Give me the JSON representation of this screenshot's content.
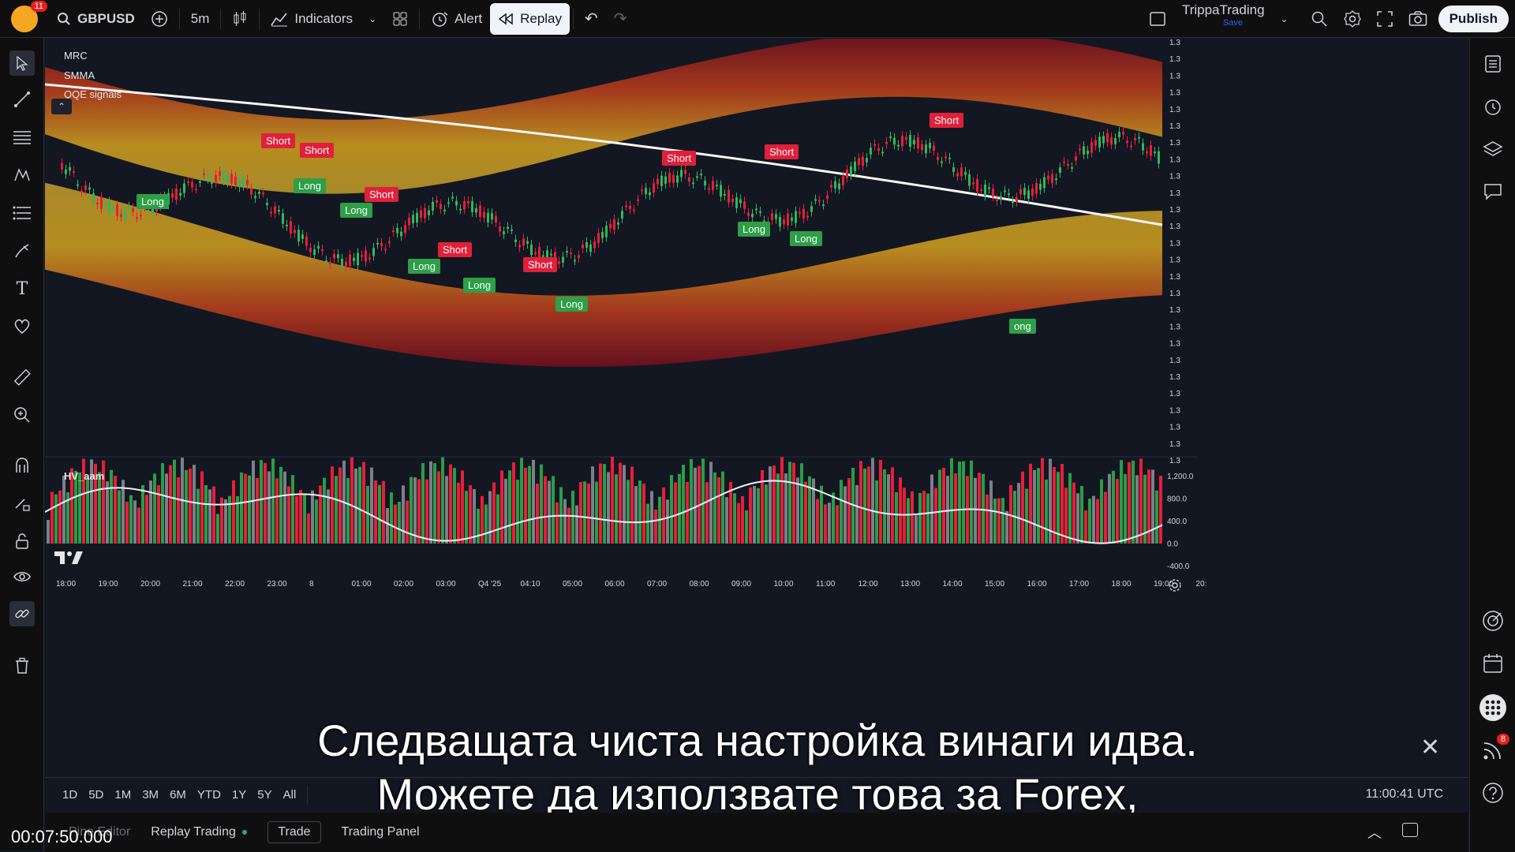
{
  "topbar": {
    "notifications": "11",
    "symbol": "GBPUSD",
    "interval": "5m",
    "indicators": "Indicators",
    "alert": "Alert",
    "replay": "Replay",
    "account_name": "TrippaTrading",
    "account_save": "Save",
    "publish": "Publish"
  },
  "chart": {
    "legends": [
      "MRC",
      "SMMA",
      "QQE signals"
    ],
    "oscillator_label": "HV_aam",
    "price_ticks": [
      "1.3",
      "1.3",
      "1.3",
      "1.3",
      "1.3",
      "1.3",
      "1.3",
      "1.3",
      "1.3",
      "1.3",
      "1.3",
      "1.3",
      "1.3",
      "1.3",
      "1.3",
      "1.3",
      "1.3",
      "1.3",
      "1.3",
      "1.3",
      "1.3",
      "1.3",
      "1.3",
      "1.3",
      "1.3",
      "1.3"
    ],
    "osc_ticks": [
      "1,200.0",
      "800.0",
      "400.0",
      "0.0",
      "-400.0"
    ],
    "time_ticks": [
      "18:00",
      "19:00",
      "20:00",
      "21:00",
      "22:00",
      "23:00",
      "8",
      "01:00",
      "02:00",
      "03:00",
      "Q4 '25",
      "04:10",
      "05:00",
      "06:00",
      "07:00",
      "08:00",
      "09:00",
      "10:00",
      "11:00",
      "12:00",
      "13:00",
      "14:00",
      "15:00",
      "16:00",
      "17:00",
      "18:00",
      "19:00",
      "20:"
    ],
    "signals": [
      {
        "label": "Short",
        "kind": "short"
      },
      {
        "label": "Short",
        "kind": "short"
      },
      {
        "label": "Long",
        "kind": "long"
      },
      {
        "label": "Long",
        "kind": "long"
      },
      {
        "label": "Long",
        "kind": "long"
      },
      {
        "label": "Short",
        "kind": "short"
      },
      {
        "label": "Long",
        "kind": "long"
      },
      {
        "label": "Short",
        "kind": "short"
      },
      {
        "label": "Long",
        "kind": "long"
      },
      {
        "label": "Short",
        "kind": "short"
      },
      {
        "label": "Long",
        "kind": "long"
      },
      {
        "label": "Short",
        "kind": "short"
      },
      {
        "label": "Short",
        "kind": "short"
      },
      {
        "label": "Long",
        "kind": "long"
      },
      {
        "label": "Long",
        "kind": "long"
      },
      {
        "label": "Short",
        "kind": "short"
      },
      {
        "label": "ong",
        "kind": "long"
      }
    ]
  },
  "rangebar": {
    "ranges": [
      "1D",
      "5D",
      "1M",
      "3M",
      "6M",
      "YTD",
      "1Y",
      "5Y",
      "All"
    ],
    "clock": "11:00:41 UTC"
  },
  "panelbar": {
    "pine_editor": "Pine Editor",
    "replay_trading": "Replay Trading",
    "trade": "Trade",
    "trading_panel": "Trading Panel"
  },
  "video": {
    "timestamp": "00:07:50.000",
    "subtitle_line1": "Следващата чиста настройка винаги идва.",
    "subtitle_line2": "Можете да използвате това за Forex,"
  },
  "right_badge": "8",
  "colors": {
    "background": "#131722",
    "bull": "#26a69a",
    "bear": "#e91e3a",
    "band_yellow": "#c8a21e",
    "band_red": "#7a0c1c",
    "smma": "#ffffff"
  }
}
